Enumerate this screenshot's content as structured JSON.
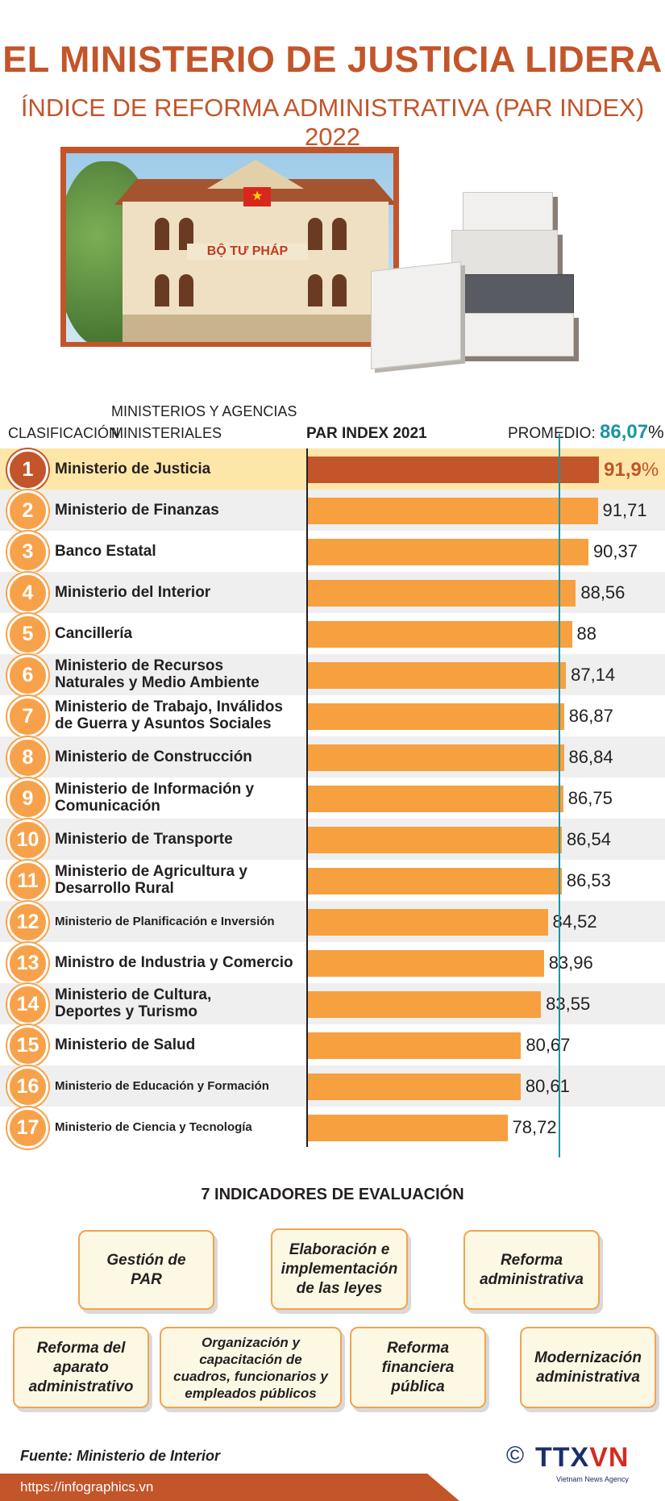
{
  "header": {
    "title": "EL MINISTERIO DE JUSTICIA LIDERA",
    "subtitle": "ÍNDICE DE REFORMA ADMINISTRATIVA (PAR INDEX) 2022",
    "building_sign": "BỘ TƯ PHÁP"
  },
  "table_header": {
    "rank_label": "CLASIFICACIÓN",
    "name_label_line1": "MINISTERIOS Y AGENCIAS",
    "name_label_line2": "MINISTERIALES",
    "index_label": "PAR INDEX 2021",
    "average_label": "PROMEDIO:",
    "average_value": "86,07",
    "average_unit": "%"
  },
  "chart_data": {
    "type": "bar",
    "orientation": "horizontal",
    "average_line": 86.07,
    "xlim": [
      50,
      92
    ],
    "categories": [
      "Ministerio de Justicia",
      "Ministerio de Finanzas",
      "Banco Estatal",
      "Ministerio del Interior",
      "Cancillería",
      "Ministerio de Recursos Naturales y Medio Ambiente",
      "Ministerio de Trabajo, Inválidos de Guerra y Asuntos Sociales",
      "Ministerio de Construcción",
      "Ministerio de Información y Comunicación",
      "Ministerio de Transporte",
      "Ministerio de Agricultura y Desarrollo Rural",
      "Ministerio de Planificación e Inversión",
      "Ministro de Industria y Comercio",
      "Ministerio de Cultura, Deportes y Turismo",
      "Ministerio de Salud",
      "Ministerio de Educación y Formación",
      "Ministerio de Ciencia y Tecnología"
    ],
    "values": [
      91.9,
      91.71,
      90.37,
      88.56,
      88,
      87.14,
      86.87,
      86.84,
      86.75,
      86.54,
      86.53,
      84.52,
      83.96,
      83.55,
      80.67,
      80.61,
      78.72
    ]
  },
  "rows": [
    {
      "rank": "1",
      "name1": "Ministerio de Justicia",
      "name2": "",
      "value": "91,9",
      "unit": "%"
    },
    {
      "rank": "2",
      "name1": "Ministerio de Finanzas",
      "name2": "",
      "value": "91,71"
    },
    {
      "rank": "3",
      "name1": "Banco Estatal",
      "name2": "",
      "value": "90,37"
    },
    {
      "rank": "4",
      "name1": "Ministerio del Interior",
      "name2": "",
      "value": "88,56"
    },
    {
      "rank": "5",
      "name1": "Cancillería",
      "name2": "",
      "value": "88"
    },
    {
      "rank": "6",
      "name1": "Ministerio de Recursos",
      "name2": "Naturales y Medio Ambiente",
      "value": "87,14"
    },
    {
      "rank": "7",
      "name1": "Ministerio de Trabajo, Inválidos",
      "name2": "de Guerra y Asuntos Sociales",
      "value": "86,87"
    },
    {
      "rank": "8",
      "name1": "Ministerio de Construcción",
      "name2": "",
      "value": "86,84"
    },
    {
      "rank": "9",
      "name1": "Ministerio de Información y",
      "name2": "Comunicación",
      "value": "86,75"
    },
    {
      "rank": "10",
      "name1": "Ministerio de Transporte",
      "name2": "",
      "value": "86,54"
    },
    {
      "rank": "11",
      "name1": "Ministerio de Agricultura y",
      "name2": "Desarrollo Rural",
      "value": "86,53"
    },
    {
      "rank": "12",
      "name1": "Ministerio de Planificación e Inversión",
      "name2": "",
      "value": "84,52"
    },
    {
      "rank": "13",
      "name1": "Ministro de Industria y Comercio",
      "name2": "",
      "value": "83,96"
    },
    {
      "rank": "14",
      "name1": "Ministerio de Cultura,",
      "name2": "Deportes y Turismo",
      "value": "83,55"
    },
    {
      "rank": "15",
      "name1": "Ministerio de Salud",
      "name2": "",
      "value": "80,67"
    },
    {
      "rank": "16",
      "name1": "Ministerio de Educación y Formación",
      "name2": "",
      "value": "80,61"
    },
    {
      "rank": "17",
      "name1": "Ministerio de Ciencia y Tecnología",
      "name2": "",
      "value": "78,72"
    }
  ],
  "indicators": {
    "title": "7 INDICADORES DE EVALUACIÓN",
    "items": [
      {
        "line1": "Gestión de",
        "line2": "PAR",
        "line3": "",
        "line4": ""
      },
      {
        "line1": "Elaboración e",
        "line2": "implementación",
        "line3": "de las leyes",
        "line4": ""
      },
      {
        "line1": "Reforma",
        "line2": "administrativa",
        "line3": "",
        "line4": ""
      },
      {
        "line1": "Reforma del",
        "line2": "aparato",
        "line3": "administrativo",
        "line4": ""
      },
      {
        "line1": "Organización y",
        "line2": "capacitación de",
        "line3": "cuadros, funcionarios y",
        "line4": "empleados públicos"
      },
      {
        "line1": "Reforma",
        "line2": "financiera",
        "line3": "pública",
        "line4": ""
      },
      {
        "line1": "Modernización",
        "line2": "administrativa",
        "line3": "",
        "line4": ""
      }
    ]
  },
  "footer": {
    "source": "Fuente: Ministerio de Interior",
    "copyright": "©",
    "logo_a": "TTX",
    "logo_b": "VN",
    "logo_sub": "Vietnam News Agency",
    "url": "https://infographics.vn"
  },
  "colors": {
    "accent": "#c2552a",
    "bar": "#f7a040",
    "average": "#1a95a8",
    "highlight_row": "#fde7a8"
  }
}
